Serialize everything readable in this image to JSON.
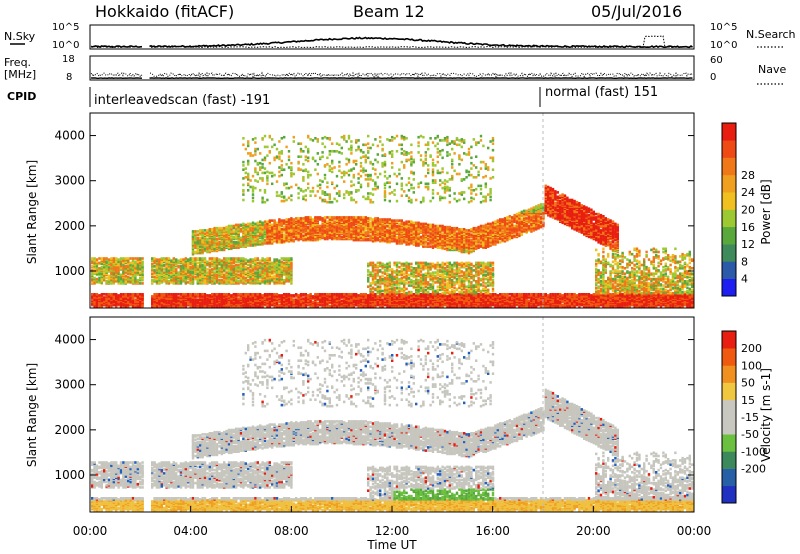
{
  "header": {
    "station": "Hokkaido (fitACF)",
    "beam": "Beam 12",
    "date": "05/Jul/2016"
  },
  "panels": {
    "nsky": {
      "left_label": "N.Sky",
      "right_label": "N.Search",
      "left_ticks": [
        "10^5",
        "10^0"
      ],
      "right_ticks": [
        "10^5",
        "10^0"
      ]
    },
    "freq": {
      "left_label_1": "Freq.",
      "left_label_2": "[MHz]",
      "left_ticks": [
        "18",
        "8"
      ],
      "right_label": "Nave",
      "right_ticks": [
        "60",
        "0"
      ]
    },
    "cpid": {
      "label": "CPID",
      "segments": [
        {
          "text": "interleavedscan (fast) -191"
        },
        {
          "text": "normal (fast) 151"
        }
      ]
    }
  },
  "chart_data": [
    {
      "type": "heatmap",
      "name": "power",
      "ylabel": "Slant Range [km]",
      "ylim": [
        180,
        4500
      ],
      "yticks": [
        "1000",
        "2000",
        "3000",
        "4000"
      ],
      "colorbar": {
        "label": "Power [dB]",
        "ticks": [
          "4",
          "8",
          "12",
          "16",
          "20",
          "24",
          "28"
        ],
        "colors": [
          "#1e1ef0",
          "#2a5aa8",
          "#3f8a5a",
          "#58a83c",
          "#9cc832",
          "#f0c020",
          "#f0a020",
          "#f07818",
          "#f04a14",
          "#e81e10"
        ]
      }
    },
    {
      "type": "heatmap",
      "name": "velocity",
      "ylabel": "Slant Range [km]",
      "ylim": [
        180,
        4500
      ],
      "yticks": [
        "1000",
        "2000",
        "3000",
        "4000"
      ],
      "xlabel": "Time UT",
      "xticks": [
        "00:00",
        "04:00",
        "08:00",
        "12:00",
        "16:00",
        "20:00",
        "00:00"
      ],
      "colorbar": {
        "label": "Velocity [m s-1]",
        "ticks": [
          "200",
          "100",
          "50",
          "15",
          "-15",
          "-50",
          "-100",
          "-200"
        ],
        "colors": [
          "#2030c0",
          "#2860a8",
          "#3c8a5c",
          "#6cc040",
          "#c8c8c0",
          "#c8c8c0",
          "#f0c840",
          "#f09020",
          "#f05a10",
          "#e81e10"
        ]
      }
    }
  ],
  "colors": {
    "grey": "#c6c6be",
    "orange": "#f0a020",
    "green": "#6cc040",
    "red": "#e81e10"
  }
}
